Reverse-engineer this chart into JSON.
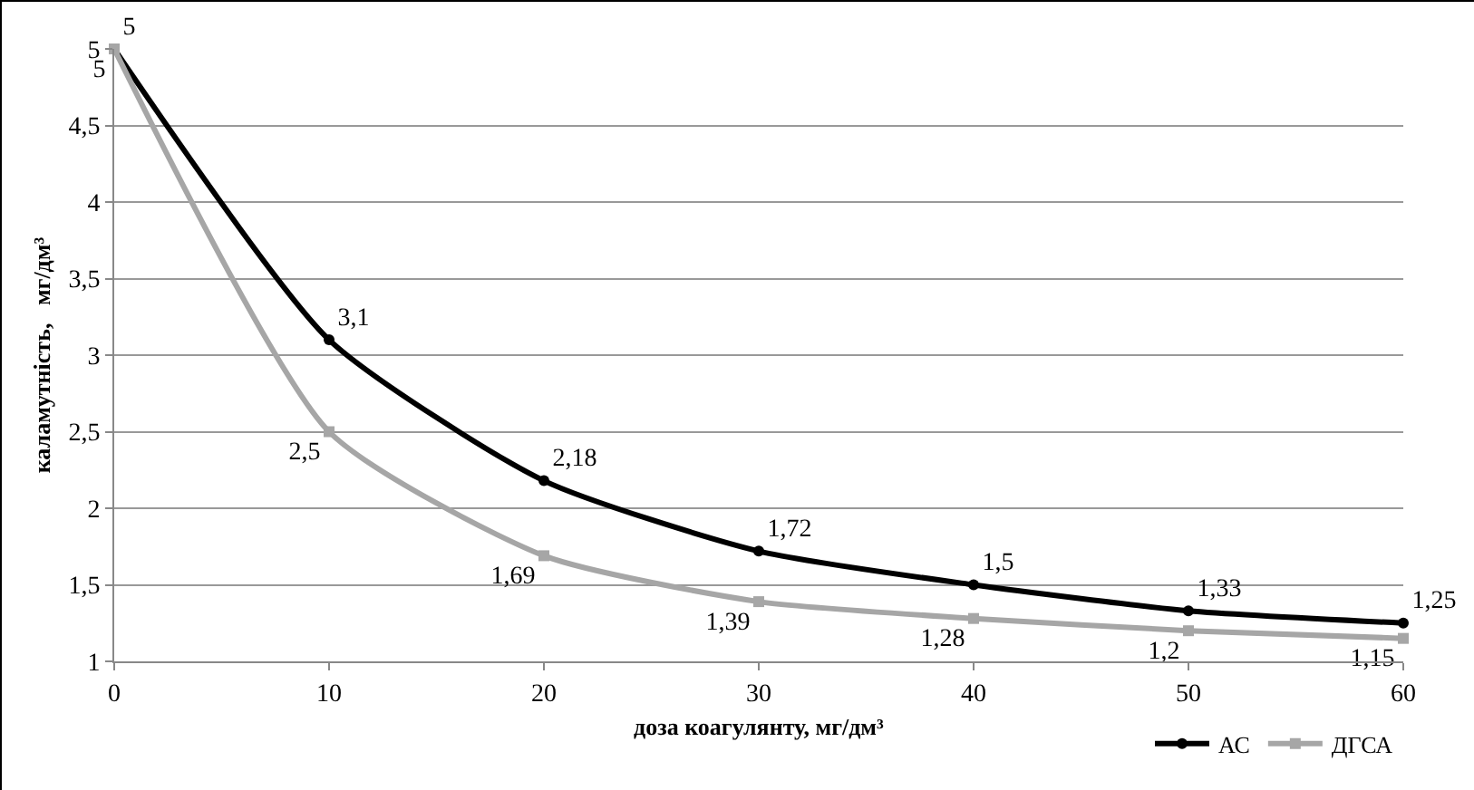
{
  "chart_data": {
    "type": "line",
    "xlabel": "доза коагулянту, мг/дм³",
    "ylabel": "каламутність,   мг/дм³",
    "x": [
      0,
      10,
      20,
      30,
      40,
      50,
      60
    ],
    "series": [
      {
        "name": "АС",
        "color": "#000000",
        "marker": "circle",
        "values": [
          5,
          3.1,
          2.18,
          1.72,
          1.5,
          1.33,
          1.25
        ],
        "value_labels": [
          "5",
          "3,1",
          "2,18",
          "1,72",
          "1,5",
          "1,33",
          "1,25"
        ]
      },
      {
        "name": "ДГСА",
        "color": "#a6a6a6",
        "marker": "square",
        "values": [
          5,
          2.5,
          1.69,
          1.39,
          1.28,
          1.2,
          1.15
        ],
        "value_labels": [
          "5",
          "2,5",
          "1,69",
          "1,39",
          "1,28",
          "1,2",
          "1,15"
        ]
      }
    ],
    "xlim": [
      0,
      60
    ],
    "xticks": [
      0,
      10,
      20,
      30,
      40,
      50,
      60
    ],
    "ylim": [
      1,
      5
    ],
    "yticks": [
      1,
      {
        "value": 1.5,
        "label": "1,5"
      },
      2,
      {
        "value": 2.5,
        "label": "2,5"
      },
      3,
      {
        "value": 3.5,
        "label": "3,5"
      },
      4,
      {
        "value": 4.5,
        "label": "4,5"
      },
      5
    ],
    "grid": "y",
    "legend": "bottom right",
    "line_style": "solid"
  }
}
